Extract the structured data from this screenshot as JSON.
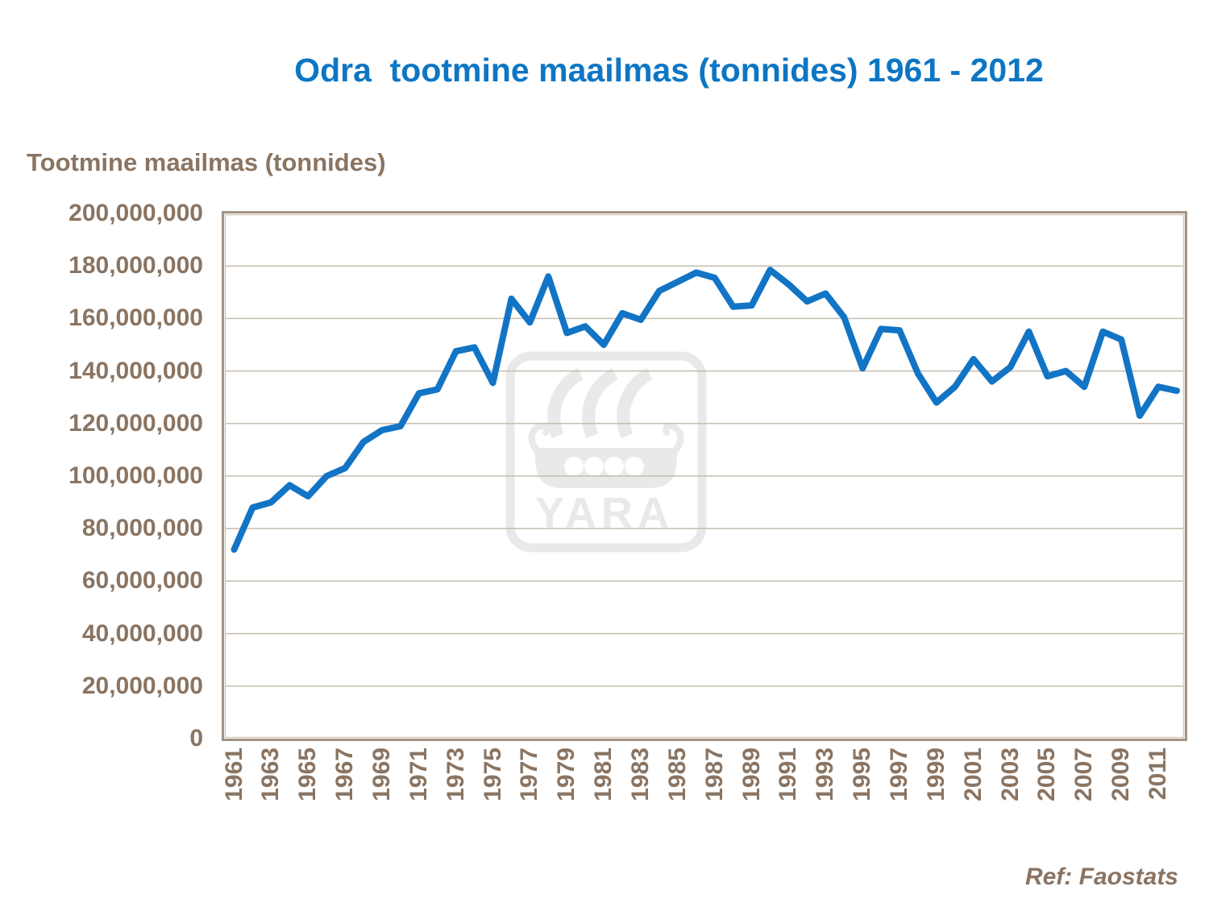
{
  "title": "Odra  tootmine maailmas (tonnides) 1961 - 2012",
  "axis_title": "Tootmine maailmas (tonnides)",
  "footer": {
    "ref_label": "Ref: Faostats"
  },
  "watermark": {
    "label": "YARA",
    "icon": "yara-viking-ship-logo"
  },
  "colors": {
    "background": "#ffffff",
    "title": "#0d76c4",
    "line": "#1274c5",
    "axis_text": "#8a7462",
    "gridline": "#c6bcb1",
    "plot_border": "#a39488",
    "plot_border_inner": "#d4cabf",
    "watermark": "#e9e9e9"
  },
  "chart_data": {
    "type": "line",
    "title": "Odra  tootmine maailmas (tonnides) 1961 - 2012",
    "xlabel": "",
    "ylabel": "Tootmine maailmas (tonnides)",
    "x": [
      1961,
      1962,
      1963,
      1964,
      1965,
      1966,
      1967,
      1968,
      1969,
      1970,
      1971,
      1972,
      1973,
      1974,
      1975,
      1976,
      1977,
      1978,
      1979,
      1980,
      1981,
      1982,
      1983,
      1984,
      1985,
      1986,
      1987,
      1988,
      1989,
      1990,
      1991,
      1992,
      1993,
      1994,
      1995,
      1996,
      1997,
      1998,
      1999,
      2000,
      2001,
      2002,
      2003,
      2004,
      2005,
      2006,
      2007,
      2008,
      2009,
      2010,
      2011,
      2012
    ],
    "series": [
      {
        "name": "Tootmine maailmas (tonnides)",
        "color": "#1274c5",
        "values": [
          72000000,
          88000000,
          90000000,
          96500000,
          92300000,
          100000000,
          103000000,
          113000000,
          117500000,
          119000000,
          131500000,
          133000000,
          147500000,
          149000000,
          135500000,
          167500000,
          158500000,
          176000000,
          154500000,
          157000000,
          150000000,
          162000000,
          159500000,
          170500000,
          174000000,
          177500000,
          175500000,
          164500000,
          165000000,
          178500000,
          173000000,
          166500000,
          169500000,
          160500000,
          141000000,
          156000000,
          155500000,
          139000000,
          128000000,
          134000000,
          144500000,
          136000000,
          141500000,
          155000000,
          138000000,
          140000000,
          134000000,
          155000000,
          152000000,
          123000000,
          134000000,
          132500000
        ]
      }
    ],
    "ylim": [
      0,
      200000000
    ],
    "y_tick_step": 20000000,
    "y_tick_labels": [
      "0",
      "20,000,000",
      "40,000,000",
      "60,000,000",
      "80,000,000",
      "100,000,000",
      "120,000,000",
      "140,000,000",
      "160,000,000",
      "180,000,000",
      "200,000,000"
    ],
    "x_tick_labels": [
      "1961",
      "1963",
      "1965",
      "1967",
      "1969",
      "1971",
      "1973",
      "1975",
      "1977",
      "1979",
      "1981",
      "1983",
      "1985",
      "1987",
      "1989",
      "1991",
      "1993",
      "1995",
      "1997",
      "1999",
      "2001",
      "2003",
      "2005",
      "2007",
      "2009",
      "2011"
    ],
    "grid": "horizontal",
    "legend": "none"
  }
}
